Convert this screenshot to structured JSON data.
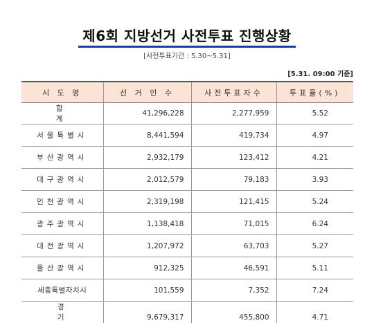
{
  "title": "제6회 지방선거 사전투표 진행상황",
  "subtitle": "[사전투표기간 : 5.30~5.31]",
  "as_of": "[5.31. 09:00 기준]",
  "table": {
    "headers": [
      "시 도 명",
      "선 거 인 수",
      "사전투표자수",
      "투표율(%)"
    ],
    "rows": [
      {
        "region": "합 계",
        "voters": "41,296,228",
        "early_voters": "2,277,959",
        "rate": "5.52"
      },
      {
        "region": "서울특별시",
        "voters": "8,441,594",
        "early_voters": "419,734",
        "rate": "4.97"
      },
      {
        "region": "부산광역시",
        "voters": "2,932,179",
        "early_voters": "123,412",
        "rate": "4.21"
      },
      {
        "region": "대구광역시",
        "voters": "2,012,579",
        "early_voters": "79,183",
        "rate": "3.93"
      },
      {
        "region": "인천광역시",
        "voters": "2,319,198",
        "early_voters": "121,415",
        "rate": "5.24"
      },
      {
        "region": "광주광역시",
        "voters": "1,138,418",
        "early_voters": "71,015",
        "rate": "6.24"
      },
      {
        "region": "대전광역시",
        "voters": "1,207,972",
        "early_voters": "63,703",
        "rate": "5.27"
      },
      {
        "region": "울산광역시",
        "voters": "912,325",
        "early_voters": "46,591",
        "rate": "5.11"
      },
      {
        "region": "세종특별자치시",
        "voters": "101,559",
        "early_voters": "7,352",
        "rate": "7.24"
      },
      {
        "region": "경 기 도",
        "voters": "9,679,317",
        "early_voters": "455,800",
        "rate": "4.71"
      }
    ]
  }
}
